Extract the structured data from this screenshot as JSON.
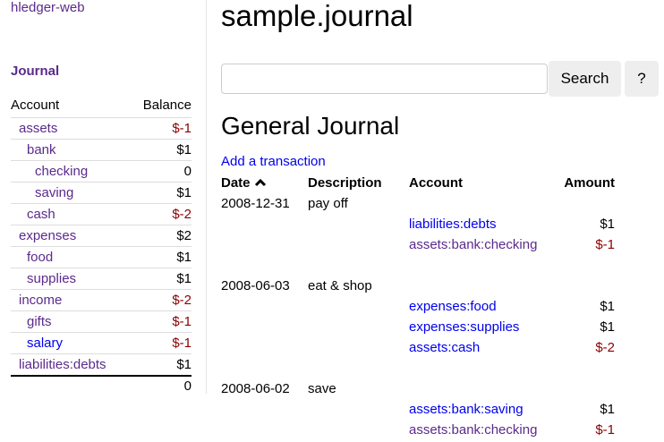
{
  "sidebar": {
    "brand": "hledger-web",
    "journal_link": "Journal",
    "header": {
      "account": "Account",
      "balance": "Balance"
    },
    "accounts": [
      {
        "name": "assets",
        "balance": "$-1",
        "depth": 0,
        "visited": true,
        "negative": true
      },
      {
        "name": "bank",
        "balance": "$1",
        "depth": 1,
        "visited": true,
        "negative": false
      },
      {
        "name": "checking",
        "balance": "0",
        "depth": 2,
        "visited": true,
        "negative": false
      },
      {
        "name": "saving",
        "balance": "$1",
        "depth": 2,
        "visited": true,
        "negative": false
      },
      {
        "name": "cash",
        "balance": "$-2",
        "depth": 1,
        "visited": true,
        "negative": true
      },
      {
        "name": "expenses",
        "balance": "$2",
        "depth": 0,
        "visited": true,
        "negative": false
      },
      {
        "name": "food",
        "balance": "$1",
        "depth": 1,
        "visited": true,
        "negative": false
      },
      {
        "name": "supplies",
        "balance": "$1",
        "depth": 1,
        "visited": true,
        "negative": false
      },
      {
        "name": "income",
        "balance": "$-2",
        "depth": 0,
        "visited": true,
        "negative": true
      },
      {
        "name": "gifts",
        "balance": "$-1",
        "depth": 1,
        "visited": true,
        "negative": true
      },
      {
        "name": "salary",
        "balance": "$-1",
        "depth": 1,
        "visited": false,
        "negative": true
      },
      {
        "name": "liabilities:debts",
        "balance": "$1",
        "depth": 0,
        "visited": true,
        "negative": false
      }
    ],
    "total": "0"
  },
  "main": {
    "title": "sample.journal",
    "search": {
      "value": "",
      "placeholder": ""
    },
    "search_button": "Search",
    "help_button": "?",
    "heading": "General Journal",
    "add_link": "Add a transaction",
    "columns": {
      "date": "Date",
      "description": "Description",
      "account": "Account",
      "amount": "Amount"
    },
    "sort_icon": "chevron-up-icon",
    "transactions": [
      {
        "date": "2008-12-31",
        "description": "pay off",
        "postings": [
          {
            "account": "liabilities:debts",
            "amount": "$1",
            "visited": false,
            "negative": false
          },
          {
            "account": "assets:bank:checking",
            "amount": "$-1",
            "visited": true,
            "negative": true
          }
        ]
      },
      {
        "date": "2008-06-03",
        "description": "eat & shop",
        "postings": [
          {
            "account": "expenses:food",
            "amount": "$1",
            "visited": false,
            "negative": false
          },
          {
            "account": "expenses:supplies",
            "amount": "$1",
            "visited": false,
            "negative": false
          },
          {
            "account": "assets:cash",
            "amount": "$-2",
            "visited": false,
            "negative": true
          }
        ]
      },
      {
        "date": "2008-06-02",
        "description": "save",
        "postings": [
          {
            "account": "assets:bank:saving",
            "amount": "$1",
            "visited": false,
            "negative": false
          },
          {
            "account": "assets:bank:checking",
            "amount": "$-1",
            "visited": true,
            "negative": true
          }
        ]
      }
    ]
  },
  "colors": {
    "visited_link": "#5b2a8c",
    "link": "#0000ee",
    "negative": "#8b0000"
  }
}
